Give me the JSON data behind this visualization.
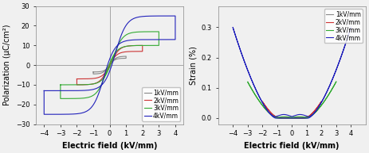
{
  "fig_width": 4.63,
  "fig_height": 1.93,
  "dpi": 100,
  "background_color": "#f0f0f0",
  "pe_xlim": [
    -4.5,
    4.5
  ],
  "pe_ylim": [
    -30,
    30
  ],
  "pe_xticks": [
    -4,
    -3,
    -2,
    -1,
    0,
    1,
    2,
    3,
    4
  ],
  "pe_yticks": [
    -30,
    -20,
    -10,
    0,
    10,
    20,
    30
  ],
  "pe_xlabel": "Electric field (kV/mm)",
  "pe_ylabel": "Polarization (μC/cm²)",
  "se_xlim": [
    -5,
    5
  ],
  "se_ylim": [
    -0.02,
    0.37
  ],
  "se_xticks": [
    -4,
    -3,
    -2,
    -1,
    0,
    1,
    2,
    3,
    4
  ],
  "se_yticks": [
    0.0,
    0.1,
    0.2,
    0.3
  ],
  "se_xlabel": "Electric field (kV/mm)",
  "se_ylabel": "Strain (%)",
  "colors": {
    "1kV": "#888888",
    "2kV": "#cc3333",
    "3kV": "#33aa33",
    "4kV": "#2222bb"
  },
  "legend_labels": [
    "1kV/mm",
    "2kV/mm",
    "3kV/mm",
    "4kV/mm"
  ],
  "axis_line_color": "#888888",
  "font_size_label": 7,
  "font_size_tick": 6,
  "font_size_legend": 5.5,
  "line_width": 0.8
}
